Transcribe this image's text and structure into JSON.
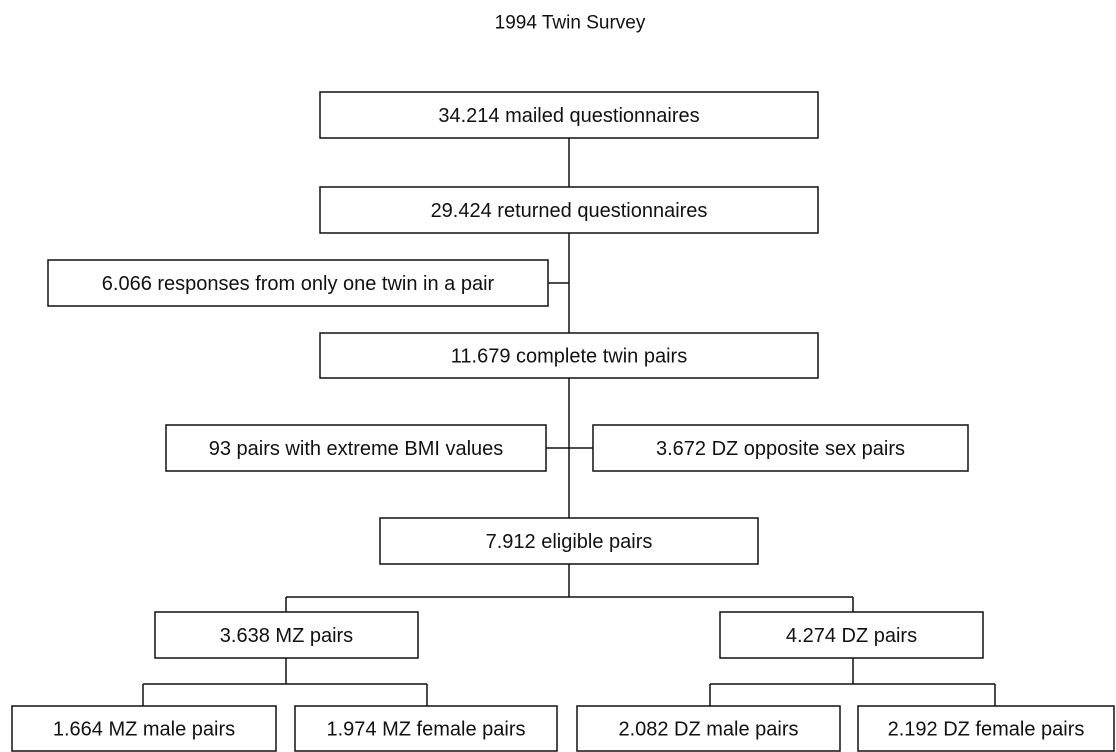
{
  "title": "1994 Twin Survey",
  "nodes": [
    {
      "label": "34.214 mailed questionnaires"
    },
    {
      "label": "29.424 returned questionnaires"
    },
    {
      "label": "6.066 responses from only one twin in a pair"
    },
    {
      "label": "11.679 complete twin pairs"
    },
    {
      "label": "93 pairs with extreme BMI values"
    },
    {
      "label": "3.672 DZ opposite sex pairs"
    },
    {
      "label": "7.912 eligible pairs"
    },
    {
      "label": "3.638 MZ pairs"
    },
    {
      "label": "4.274 DZ pairs"
    },
    {
      "label": "1.664 MZ male pairs"
    },
    {
      "label": "1.974 MZ female pairs"
    },
    {
      "label": "2.082 DZ male pairs"
    },
    {
      "label": "2.192 DZ female pairs"
    }
  ]
}
